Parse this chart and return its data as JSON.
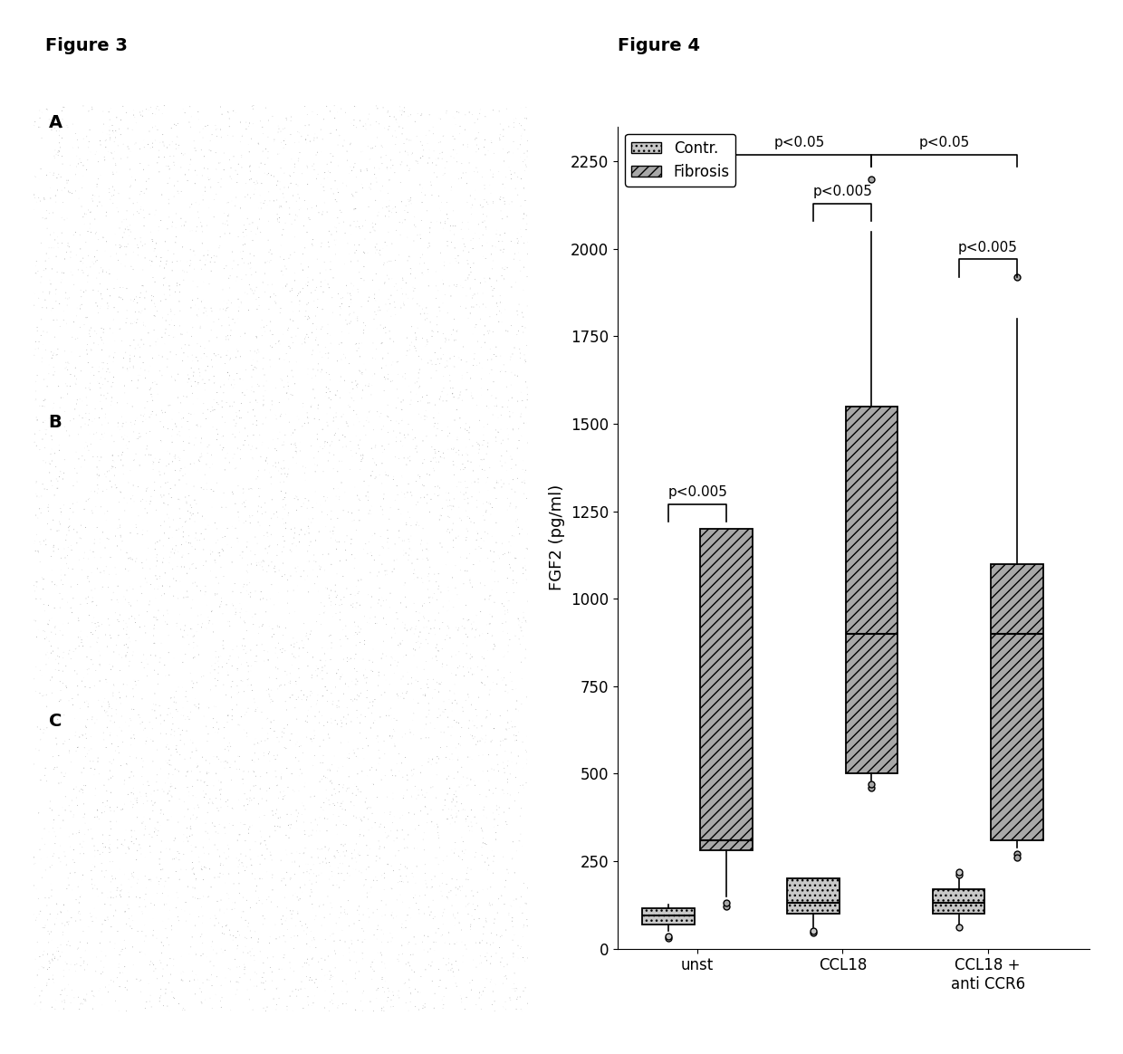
{
  "figure3_title": "Figure 3",
  "figure4_title": "Figure 4",
  "ylabel": "FGF2 (pg/ml)",
  "xtick_labels": [
    "unst",
    "CCL18",
    "CCL18 +\nanti CCR6"
  ],
  "yticks": [
    0,
    250,
    500,
    750,
    1000,
    1250,
    1500,
    1750,
    2000,
    2250
  ],
  "ylim": [
    0,
    2350
  ],
  "legend_labels": [
    "Contr.",
    "Fibrosis"
  ],
  "contr_color": "#c8c8c8",
  "fibrosis_color": "#a8a8a8",
  "box_data": {
    "unst": {
      "contr": {
        "q1": 70,
        "median": 95,
        "q3": 115,
        "whislo": 50,
        "whishi": 125,
        "fliers": [
          30,
          35
        ]
      },
      "fibrosis": {
        "q1": 280,
        "median": 310,
        "q3": 1200,
        "whislo": 150,
        "whishi": 1200,
        "fliers": [
          120,
          130
        ]
      }
    },
    "ccl18": {
      "contr": {
        "q1": 100,
        "median": 130,
        "q3": 200,
        "whislo": 60,
        "whishi": 200,
        "fliers": [
          45,
          50
        ]
      },
      "fibrosis": {
        "q1": 500,
        "median": 900,
        "q3": 1550,
        "whislo": 480,
        "whishi": 2050,
        "fliers": [
          2200,
          460,
          470
        ]
      }
    },
    "ccl18_anti": {
      "contr": {
        "q1": 100,
        "median": 130,
        "q3": 170,
        "whislo": 60,
        "whishi": 200,
        "fliers": [
          210,
          220,
          60
        ]
      },
      "fibrosis": {
        "q1": 310,
        "median": 900,
        "q3": 1100,
        "whislo": 290,
        "whishi": 1800,
        "fliers": [
          1920,
          270,
          260
        ]
      }
    }
  },
  "background_color": "#ffffff",
  "title_fontsize": 14,
  "axis_fontsize": 13,
  "tick_fontsize": 12
}
